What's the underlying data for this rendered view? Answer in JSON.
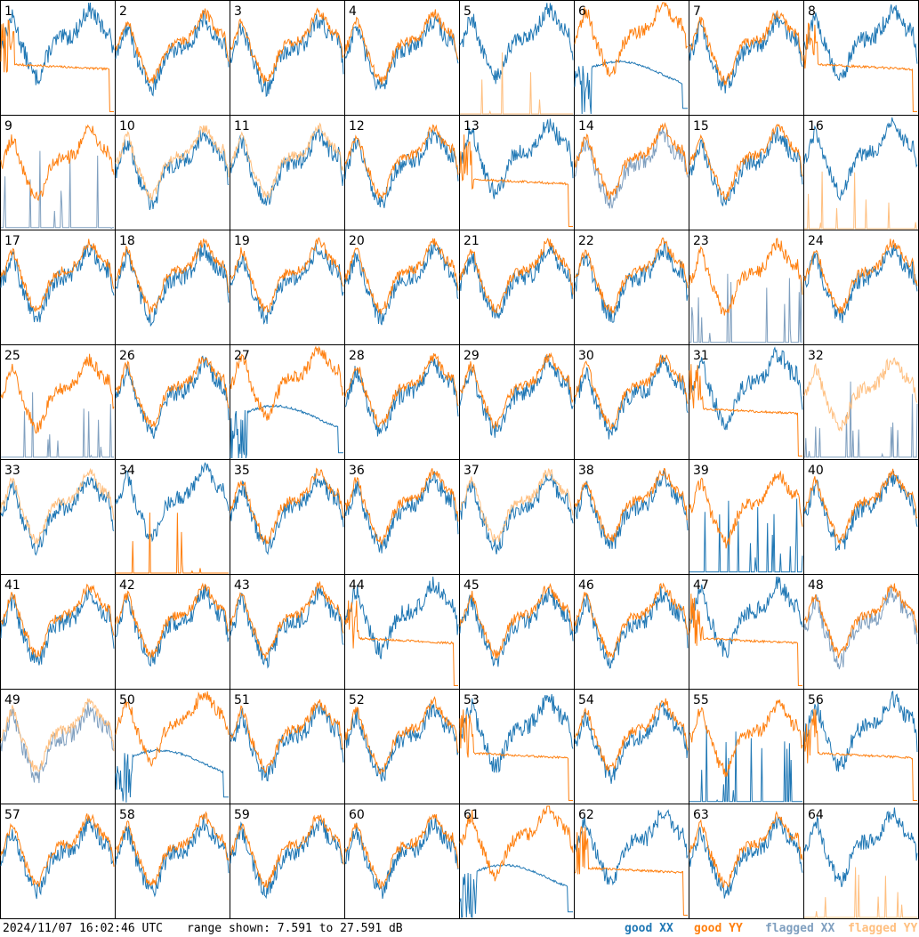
{
  "chart_data": {
    "type": "line",
    "title": "",
    "timestamp": "2024/11/07 16:02:46 UTC",
    "range_text": "range shown: 7.591 to 27.591 dB",
    "ylim": [
      7.591,
      27.591
    ],
    "grid": "8x8",
    "legend": [
      {
        "label": "good XX",
        "color": "#1f77b4"
      },
      {
        "label": "good YY",
        "color": "#ff7f0e"
      },
      {
        "label": "flagged XX",
        "color": "#7f9fbf"
      },
      {
        "label": "flagged YY",
        "color": "#ffbf7f"
      }
    ],
    "panels": [
      {
        "id": "1",
        "xx": "good",
        "yy": "good",
        "variant": "yyflat"
      },
      {
        "id": "2",
        "xx": "good",
        "yy": "good",
        "variant": "normal"
      },
      {
        "id": "3",
        "xx": "good",
        "yy": "good",
        "variant": "normal"
      },
      {
        "id": "4",
        "xx": "good",
        "yy": "good",
        "variant": "normal"
      },
      {
        "id": "5",
        "xx": "good",
        "yy": "flagged",
        "variant": "yyspikes"
      },
      {
        "id": "6",
        "xx": "good",
        "yy": "good",
        "variant": "xxflat"
      },
      {
        "id": "7",
        "xx": "good",
        "yy": "good",
        "variant": "normal"
      },
      {
        "id": "8",
        "xx": "good",
        "yy": "good",
        "variant": "yyflat"
      },
      {
        "id": "9",
        "xx": "flagged",
        "yy": "good",
        "variant": "xxspikes"
      },
      {
        "id": "10",
        "xx": "good",
        "yy": "flagged",
        "variant": "normal"
      },
      {
        "id": "11",
        "xx": "good",
        "yy": "flagged",
        "variant": "normal"
      },
      {
        "id": "12",
        "xx": "good",
        "yy": "good",
        "variant": "normal"
      },
      {
        "id": "13",
        "xx": "good",
        "yy": "good",
        "variant": "yyflat"
      },
      {
        "id": "14",
        "xx": "flagged",
        "yy": "good",
        "variant": "normal"
      },
      {
        "id": "15",
        "xx": "good",
        "yy": "good",
        "variant": "normal"
      },
      {
        "id": "16",
        "xx": "good",
        "yy": "flagged",
        "variant": "yyspikes"
      },
      {
        "id": "17",
        "xx": "good",
        "yy": "good",
        "variant": "normal"
      },
      {
        "id": "18",
        "xx": "good",
        "yy": "good",
        "variant": "normal"
      },
      {
        "id": "19",
        "xx": "good",
        "yy": "good",
        "variant": "normal"
      },
      {
        "id": "20",
        "xx": "good",
        "yy": "good",
        "variant": "normal"
      },
      {
        "id": "21",
        "xx": "good",
        "yy": "good",
        "variant": "normal"
      },
      {
        "id": "22",
        "xx": "good",
        "yy": "good",
        "variant": "normal"
      },
      {
        "id": "23",
        "xx": "flagged",
        "yy": "good",
        "variant": "xxspikes"
      },
      {
        "id": "24",
        "xx": "good",
        "yy": "good",
        "variant": "normal"
      },
      {
        "id": "25",
        "xx": "flagged",
        "yy": "good",
        "variant": "xxspikes"
      },
      {
        "id": "26",
        "xx": "good",
        "yy": "good",
        "variant": "normal"
      },
      {
        "id": "27",
        "xx": "good",
        "yy": "good",
        "variant": "xxflat"
      },
      {
        "id": "28",
        "xx": "good",
        "yy": "good",
        "variant": "normal"
      },
      {
        "id": "29",
        "xx": "good",
        "yy": "good",
        "variant": "normal"
      },
      {
        "id": "30",
        "xx": "good",
        "yy": "good",
        "variant": "normal"
      },
      {
        "id": "31",
        "xx": "good",
        "yy": "good",
        "variant": "yyflat"
      },
      {
        "id": "32",
        "xx": "flagged",
        "yy": "flagged",
        "variant": "xxspikes"
      },
      {
        "id": "33",
        "xx": "good",
        "yy": "flagged",
        "variant": "normal"
      },
      {
        "id": "34",
        "xx": "good",
        "yy": "good",
        "variant": "yyspikes"
      },
      {
        "id": "35",
        "xx": "good",
        "yy": "good",
        "variant": "normal"
      },
      {
        "id": "36",
        "xx": "good",
        "yy": "good",
        "variant": "normal"
      },
      {
        "id": "37",
        "xx": "good",
        "yy": "flagged",
        "variant": "normal"
      },
      {
        "id": "38",
        "xx": "good",
        "yy": "good",
        "variant": "normal"
      },
      {
        "id": "39",
        "xx": "good",
        "yy": "good",
        "variant": "xxspikes"
      },
      {
        "id": "40",
        "xx": "good",
        "yy": "good",
        "variant": "normal"
      },
      {
        "id": "41",
        "xx": "good",
        "yy": "good",
        "variant": "normal"
      },
      {
        "id": "42",
        "xx": "good",
        "yy": "good",
        "variant": "normal"
      },
      {
        "id": "43",
        "xx": "good",
        "yy": "good",
        "variant": "normal"
      },
      {
        "id": "44",
        "xx": "good",
        "yy": "good",
        "variant": "yyflat"
      },
      {
        "id": "45",
        "xx": "good",
        "yy": "good",
        "variant": "normal"
      },
      {
        "id": "46",
        "xx": "good",
        "yy": "good",
        "variant": "normal"
      },
      {
        "id": "47",
        "xx": "good",
        "yy": "good",
        "variant": "yyflat"
      },
      {
        "id": "48",
        "xx": "flagged",
        "yy": "good",
        "variant": "normal"
      },
      {
        "id": "49",
        "xx": "flagged",
        "yy": "flagged",
        "variant": "normal"
      },
      {
        "id": "50",
        "xx": "good",
        "yy": "good",
        "variant": "xxflat"
      },
      {
        "id": "51",
        "xx": "good",
        "yy": "good",
        "variant": "normal"
      },
      {
        "id": "52",
        "xx": "good",
        "yy": "good",
        "variant": "normal"
      },
      {
        "id": "53",
        "xx": "good",
        "yy": "good",
        "variant": "yyflat"
      },
      {
        "id": "54",
        "xx": "good",
        "yy": "good",
        "variant": "normal"
      },
      {
        "id": "55",
        "xx": "good",
        "yy": "good",
        "variant": "xxspikes"
      },
      {
        "id": "56",
        "xx": "good",
        "yy": "good",
        "variant": "yyflat"
      },
      {
        "id": "57",
        "xx": "good",
        "yy": "good",
        "variant": "normal"
      },
      {
        "id": "58",
        "xx": "good",
        "yy": "good",
        "variant": "normal"
      },
      {
        "id": "59",
        "xx": "good",
        "yy": "good",
        "variant": "normal"
      },
      {
        "id": "60",
        "xx": "good",
        "yy": "good",
        "variant": "normal"
      },
      {
        "id": "61",
        "xx": "good",
        "yy": "good",
        "variant": "xxflat"
      },
      {
        "id": "62",
        "xx": "good",
        "yy": "good",
        "variant": "yyflat"
      },
      {
        "id": "63",
        "xx": "good",
        "yy": "good",
        "variant": "normal"
      },
      {
        "id": "64",
        "xx": "good",
        "yy": "flagged",
        "variant": "yyspikes"
      }
    ]
  }
}
